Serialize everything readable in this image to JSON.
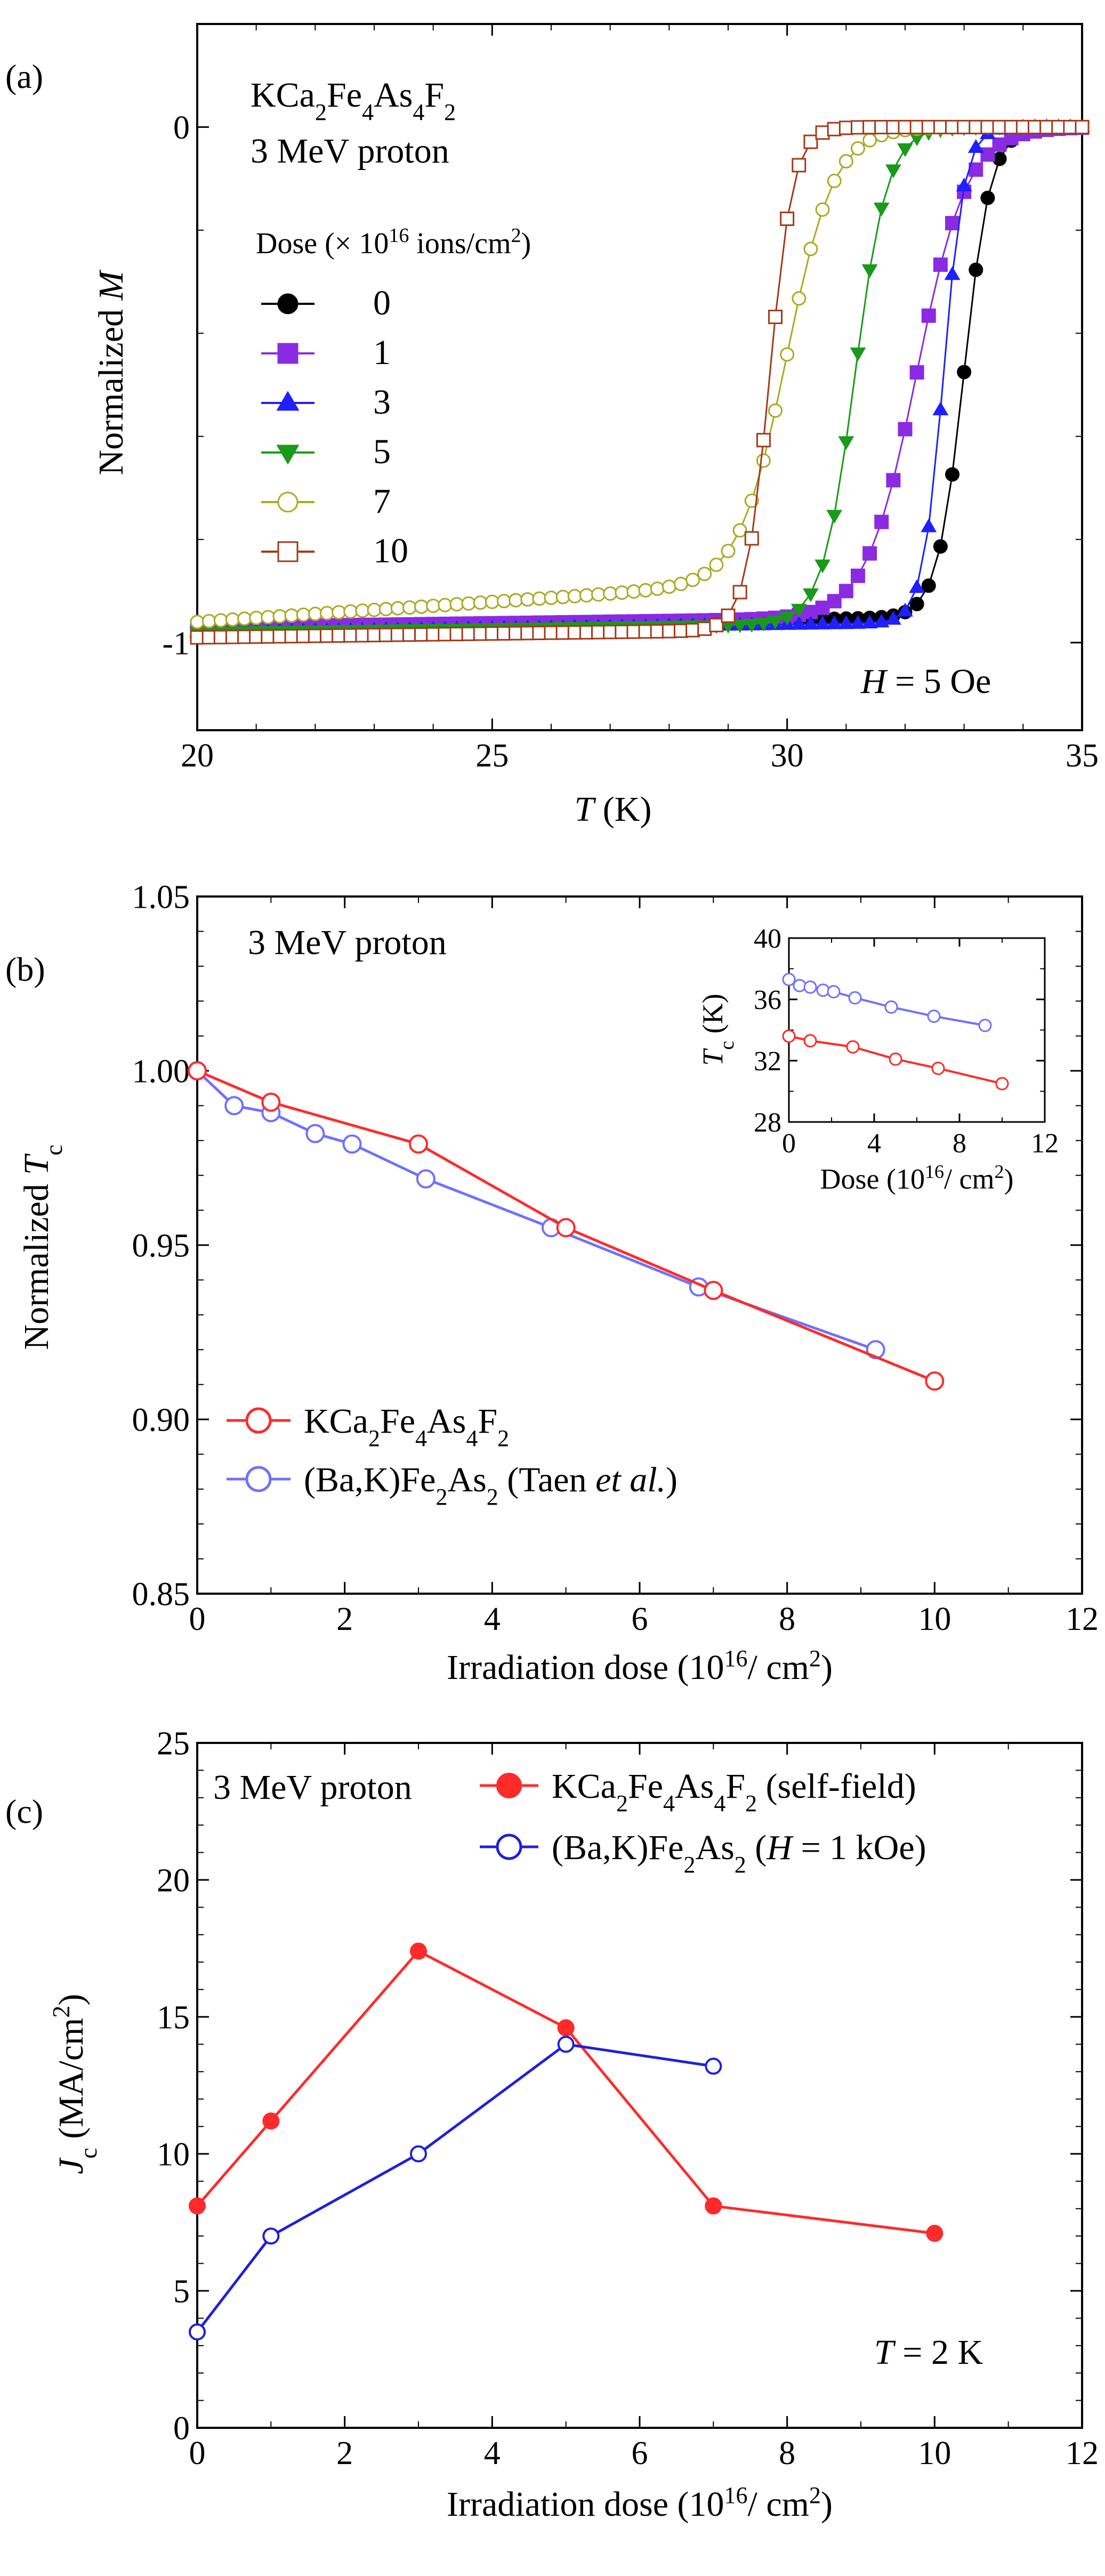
{
  "chart_data": [
    {
      "panel": "(a)",
      "type": "line",
      "title": "",
      "annotations": [
        "KCa2Fe4As4F2",
        "3 MeV proton",
        "H = 5 Oe"
      ],
      "legend_title": "Dose (× 10^16 ions/cm^2)",
      "xlabel": "T (K)",
      "ylabel": "Normalized M",
      "xlim": [
        20,
        35
      ],
      "ylim": [
        -1.17,
        0.2
      ],
      "xticks": [
        20,
        25,
        30,
        35
      ],
      "yticks": [
        0,
        -1
      ],
      "series": [
        {
          "name": "0",
          "color": "#000000",
          "marker": "circle-filled",
          "tc": 33.0,
          "width": 0.45,
          "base": -0.97
        },
        {
          "name": "1",
          "color": "#8a2be2",
          "marker": "square-filled",
          "tc": 32.2,
          "width": 0.85,
          "base": -0.97
        },
        {
          "name": "3",
          "color": "#1f1fff",
          "marker": "triangle-up-filled",
          "tc": 32.65,
          "width": 0.35,
          "base": -0.98
        },
        {
          "name": "5",
          "color": "#1a9a1a",
          "marker": "triangle-down-filled",
          "tc": 31.15,
          "width": 0.55,
          "base": -0.98
        },
        {
          "name": "7",
          "color": "#aaaa22",
          "marker": "circle-open",
          "tc": 30.0,
          "width": 0.8,
          "base": -0.96
        },
        {
          "name": "10",
          "color": "#a33a1a",
          "marker": "square-open",
          "tc": 29.7,
          "width": 0.4,
          "base": -0.99
        }
      ]
    },
    {
      "panel": "(b)",
      "type": "line",
      "annotations": [
        "3 MeV proton"
      ],
      "xlabel": "Irradiation dose (10^16/ cm^2)",
      "ylabel": "Normalized Tc",
      "xlim": [
        0,
        12
      ],
      "ylim": [
        0.85,
        1.05
      ],
      "xticks": [
        0,
        2,
        4,
        6,
        8,
        10,
        12
      ],
      "yticks": [
        0.85,
        0.9,
        0.95,
        1.0,
        1.05
      ],
      "series": [
        {
          "name": "KCa2Fe4As4F2",
          "color": "#ff2a2a",
          "x": [
            0,
            1,
            3,
            5,
            7,
            10
          ],
          "y": [
            1.0,
            0.991,
            0.979,
            0.955,
            0.937,
            0.911
          ]
        },
        {
          "name": "(Ba,K)Fe2As2 (Taen et al.)",
          "color": "#7070ff",
          "x": [
            0,
            0.5,
            1,
            1.6,
            2.1,
            3.1,
            4.8,
            6.8,
            9.2
          ],
          "y": [
            1.0,
            0.99,
            0.988,
            0.982,
            0.979,
            0.969,
            0.955,
            0.938,
            0.92
          ]
        }
      ],
      "inset": {
        "xlabel": "Dose (10^16/ cm^2)",
        "ylabel": "Tc (K)",
        "xlim": [
          0,
          12
        ],
        "ylim": [
          28,
          40
        ],
        "xticks": [
          0,
          4,
          8,
          12
        ],
        "yticks": [
          28,
          32,
          36,
          40
        ],
        "series": [
          {
            "name": "KCa2Fe4As4F2",
            "color": "#ff2a2a",
            "x": [
              0,
              1,
              3,
              5,
              7,
              10
            ],
            "y": [
              33.6,
              33.3,
              32.9,
              32.1,
              31.5,
              30.5
            ]
          },
          {
            "name": "(Ba,K)Fe2As2",
            "color": "#7070ff",
            "x": [
              0,
              0.5,
              1,
              1.6,
              2.1,
              3.1,
              4.8,
              6.8,
              9.2
            ],
            "y": [
              37.3,
              36.9,
              36.8,
              36.6,
              36.5,
              36.1,
              35.5,
              34.9,
              34.3
            ]
          }
        ]
      }
    },
    {
      "panel": "(c)",
      "type": "line",
      "annotations": [
        "3 MeV proton",
        "T = 2 K"
      ],
      "xlabel": "Irradiation dose (10^16/ cm^2)",
      "ylabel": "Jc (MA/cm^2)",
      "xlim": [
        0,
        12
      ],
      "ylim": [
        0,
        25
      ],
      "xticks": [
        0,
        2,
        4,
        6,
        8,
        10,
        12
      ],
      "yticks": [
        0,
        5,
        10,
        15,
        20,
        25
      ],
      "series": [
        {
          "name": "KCa2Fe4As4F2",
          "suffix": "(self-field)",
          "color": "#ff2a2a",
          "marker": "circle-filled",
          "x": [
            0,
            1,
            3,
            5,
            7,
            10
          ],
          "y": [
            8.1,
            11.2,
            17.4,
            14.6,
            8.1,
            7.1
          ]
        },
        {
          "name": "(Ba,K)Fe2As2",
          "suffix": "(H = 1 kOe)",
          "color": "#1f1fdd",
          "marker": "circle-open",
          "x": [
            0,
            1,
            3,
            5,
            7
          ],
          "y": [
            3.5,
            7.0,
            10.0,
            14.0,
            13.2
          ]
        }
      ]
    }
  ]
}
